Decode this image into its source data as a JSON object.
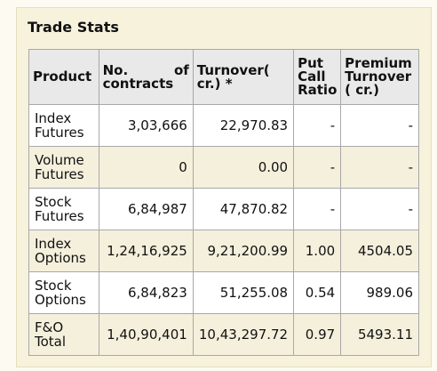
{
  "title": "Trade Stats",
  "headers": {
    "product": "Product",
    "contracts_1": "No.",
    "contracts_2": "of",
    "contracts_3": "contracts",
    "turnover_1": "Turnover(",
    "turnover_2": "cr.) *",
    "pcr_1": "Put",
    "pcr_2": "Call",
    "pcr_3": "Ratio",
    "premium_1": "Premium",
    "premium_2": "Turnover",
    "premium_3": "( cr.)"
  },
  "rows": [
    {
      "product_1": "Index",
      "product_2": "Futures",
      "contracts": "3,03,666",
      "turnover": "22,970.83",
      "pcr": "-",
      "premium": "-"
    },
    {
      "product_1": "Volume",
      "product_2": "Futures",
      "contracts": "0",
      "turnover": "0.00",
      "pcr": "-",
      "premium": "-"
    },
    {
      "product_1": "Stock",
      "product_2": "Futures",
      "contracts": "6,84,987",
      "turnover": "47,870.82",
      "pcr": "-",
      "premium": "-"
    },
    {
      "product_1": "Index",
      "product_2": "Options",
      "contracts": "1,24,16,925",
      "turnover": "9,21,200.99",
      "pcr": "1.00",
      "premium": "4504.05"
    },
    {
      "product_1": "Stock",
      "product_2": "Options",
      "contracts": "6,84,823",
      "turnover": "51,255.08",
      "pcr": "0.54",
      "premium": "989.06"
    },
    {
      "product_1": "F&O",
      "product_2": "Total",
      "contracts": "1,40,90,401",
      "turnover": "10,43,297.72",
      "pcr": "0.97",
      "premium": "5493.11"
    }
  ]
}
